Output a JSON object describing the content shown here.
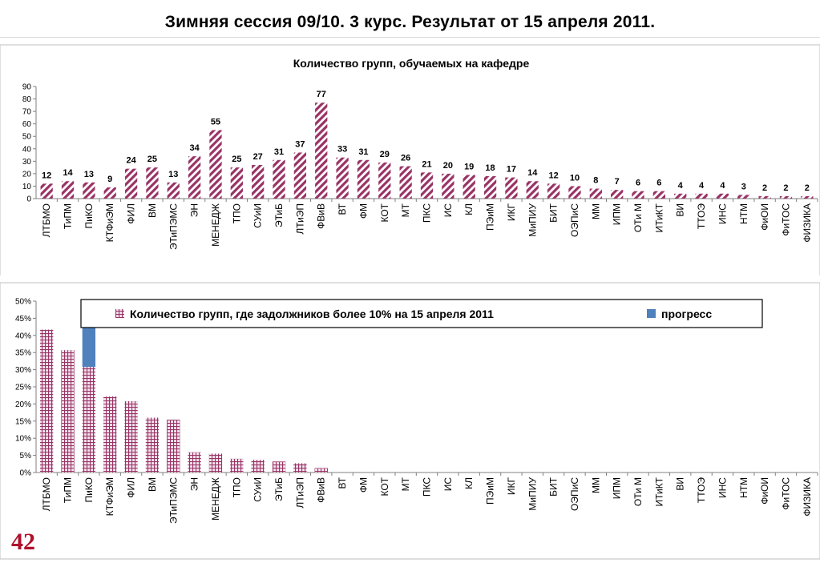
{
  "slide": {
    "title": "Зимняя сессия 09/10.   3 курс.  Результат от 15 апреля 2011.",
    "page_number": "42"
  },
  "colors": {
    "bar_main": "#993366",
    "progress": "#4f81bd",
    "axis": "#808080",
    "page_number": "#b0102a"
  },
  "chart_data": [
    {
      "type": "bar",
      "title": "Количество групп, обучаемых на кафедре",
      "xlabel": "",
      "ylabel": "",
      "ylim": [
        0,
        90
      ],
      "yticks": [
        "0",
        "10",
        "20",
        "30",
        "40",
        "50",
        "60",
        "70",
        "80",
        "90"
      ],
      "grid": false,
      "pattern": "diagonal-stripes",
      "categories": [
        "ЛТБМО",
        "ТиПМ",
        "ПиКО",
        "КТФиЭМ",
        "ФИЛ",
        "ВМ",
        "ЭТиПЭМС",
        "ЭН",
        "МЕНЕДЖ",
        "ТПО",
        "СУиИ",
        "ЭТиБ",
        "ЛТиЭП",
        "ФВиВ",
        "ВТ",
        "ФМ",
        "КОТ",
        "МТ",
        "ПКС",
        "ИС",
        "КЛ",
        "ПЭиМ",
        "ИКГ",
        "МиПИУ",
        "БИТ",
        "ОЭПиС",
        "ММ",
        "ИПМ",
        "ОТи М",
        "ИТиКТ",
        "ВИ",
        "ТТОЭ",
        "ИНС",
        "НТМ",
        "ФиОИ",
        "ФиТОС",
        "ФИЗИКА"
      ],
      "values": [
        12,
        14,
        13,
        9,
        24,
        25,
        13,
        34,
        55,
        25,
        27,
        31,
        37,
        77,
        33,
        31,
        29,
        26,
        21,
        20,
        19,
        18,
        17,
        14,
        12,
        10,
        8,
        7,
        6,
        6,
        4,
        4,
        4,
        3,
        2,
        2,
        2
      ],
      "value_labels": [
        "12",
        "14",
        "13",
        "9",
        "24",
        "25",
        "13",
        "34",
        "55",
        "25",
        "27",
        "31",
        "37",
        "77",
        "33",
        "31",
        "29",
        "26",
        "21",
        "20",
        "19",
        "18",
        "17",
        "14",
        "12",
        "10",
        "8",
        "7",
        "6",
        "6",
        "4",
        "4",
        "4",
        "3",
        "2",
        "2",
        "2"
      ]
    },
    {
      "type": "bar",
      "stacked": true,
      "title": "",
      "xlabel": "",
      "ylabel": "",
      "ylim": [
        0,
        50
      ],
      "yticks": [
        "0%",
        "5%",
        "10%",
        "15%",
        "20%",
        "25%",
        "30%",
        "35%",
        "40%",
        "45%",
        "50%"
      ],
      "grid": false,
      "legend_position": "top",
      "categories": [
        "ЛТБМО",
        "ТиПМ",
        "ПиКО",
        "КТФиЭМ",
        "ФИЛ",
        "ВМ",
        "ЭТиПЭМС",
        "ЭН",
        "МЕНЕДЖ",
        "ТПО",
        "СУиИ",
        "ЭТиБ",
        "ЛТиЭП",
        "ФВиВ",
        "ВТ",
        "ФМ",
        "КОТ",
        "МТ",
        "ПКС",
        "ИС",
        "КЛ",
        "ПЭиМ",
        "ИКГ",
        "МиПИУ",
        "БИТ",
        "ОЭПиС",
        "ММ",
        "ИПМ",
        "ОТи М",
        "ИТиКТ",
        "ВИ",
        "ТТОЭ",
        "ИНС",
        "НТМ",
        "ФиОИ",
        "ФиТОС",
        "ФИЗИКА"
      ],
      "series": [
        {
          "name": "Количество групп, где задолжников более  10% на 15 апреля 2011",
          "pattern": "grid",
          "values": [
            41.7,
            35.7,
            30.8,
            22.2,
            20.8,
            16.0,
            15.4,
            5.9,
            5.5,
            4.0,
            3.7,
            3.2,
            2.7,
            1.3,
            0,
            0,
            0,
            0,
            0,
            0,
            0,
            0,
            0,
            0,
            0,
            0,
            0,
            0,
            0,
            0,
            0,
            0,
            0,
            0,
            0,
            0,
            0
          ]
        },
        {
          "name": "прогресс",
          "pattern": "solid",
          "values": [
            0,
            0,
            11.5,
            0,
            0,
            0,
            0,
            0,
            0,
            0,
            0,
            0,
            0,
            0,
            0,
            0,
            0,
            0,
            0,
            0,
            0,
            0,
            0,
            0,
            0,
            0,
            0,
            0,
            0,
            0,
            0,
            0,
            0,
            0,
            0,
            0,
            0
          ]
        }
      ]
    }
  ]
}
